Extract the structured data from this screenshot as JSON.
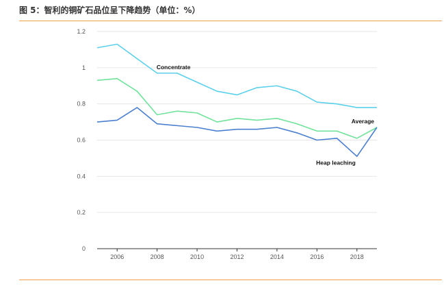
{
  "header": {
    "title": "图 5：智利的铜矿石品位呈下降趋势（单位：%）",
    "accent_color": "#f0a04b"
  },
  "chart_data": {
    "type": "line",
    "title": "",
    "xlabel": "",
    "ylabel": "",
    "x": [
      2005,
      2006,
      2007,
      2008,
      2009,
      2010,
      2011,
      2012,
      2013,
      2014,
      2015,
      2016,
      2017,
      2018,
      2019
    ],
    "xlim": [
      2005,
      2019
    ],
    "ylim": [
      0,
      1.2
    ],
    "x_ticks": [
      "2006",
      "2008",
      "2010",
      "2012",
      "2014",
      "2016",
      "2018"
    ],
    "y_ticks": [
      "0",
      "0.2",
      "0.4",
      "0.6",
      "0.8",
      "1",
      "1.2"
    ],
    "grid": "horizontal",
    "series": [
      {
        "name": "Concentrate",
        "color": "#5bd0ea",
        "values": [
          1.11,
          1.13,
          1.05,
          0.97,
          0.97,
          0.92,
          0.87,
          0.85,
          0.89,
          0.9,
          0.87,
          0.81,
          0.8,
          0.78,
          0.78
        ]
      },
      {
        "name": "Average",
        "color": "#6fe39a",
        "values": [
          0.93,
          0.94,
          0.87,
          0.74,
          0.76,
          0.75,
          0.7,
          0.72,
          0.71,
          0.72,
          0.69,
          0.65,
          0.65,
          0.61,
          0.67
        ]
      },
      {
        "name": "Heap leaching",
        "color": "#4a7fd0",
        "values": [
          0.7,
          0.71,
          0.78,
          0.69,
          0.68,
          0.67,
          0.65,
          0.66,
          0.66,
          0.67,
          0.64,
          0.6,
          0.61,
          0.51,
          0.67
        ]
      }
    ]
  }
}
